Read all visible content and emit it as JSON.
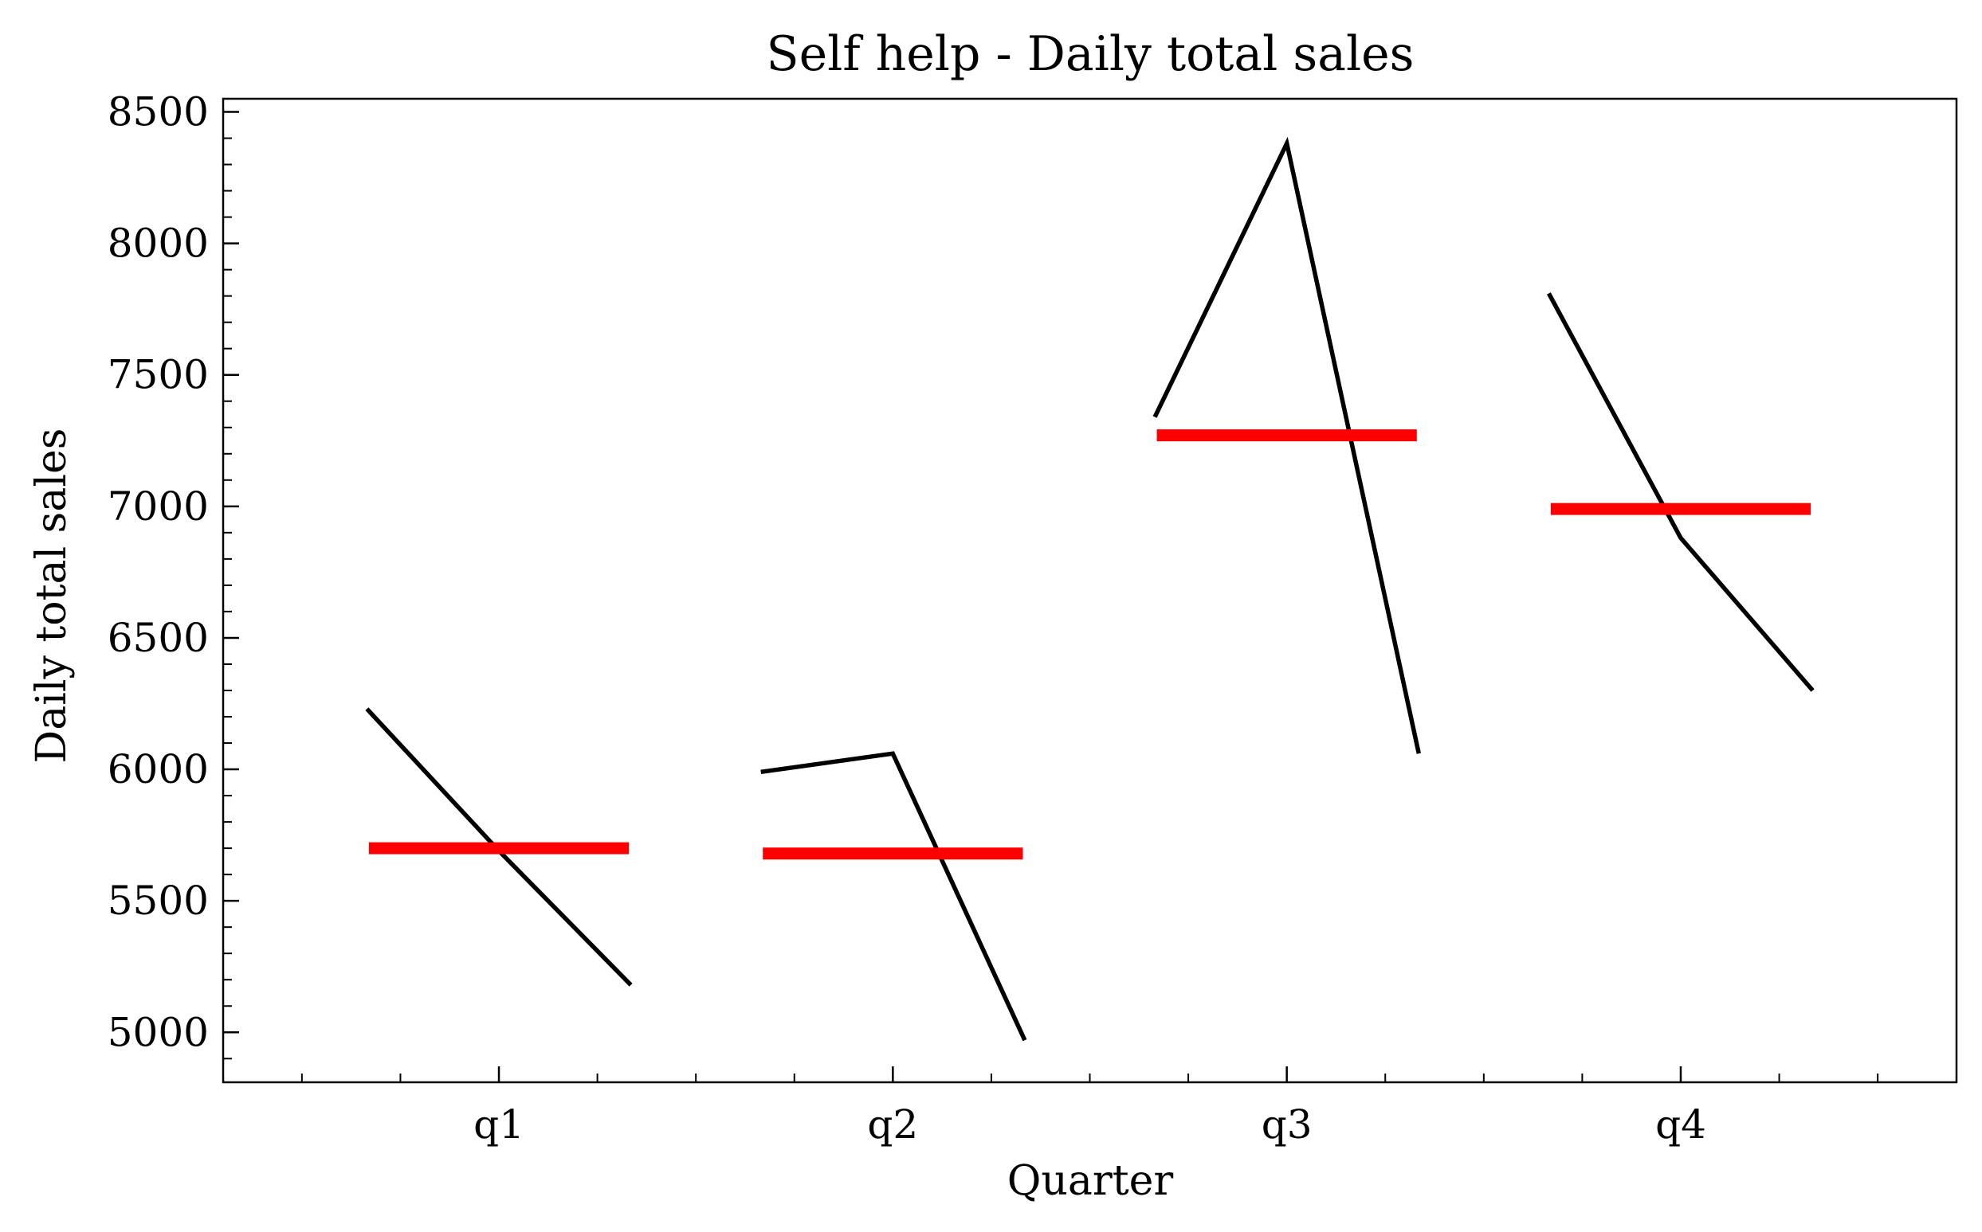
{
  "chart_data": {
    "type": "line",
    "title": "Self help - Daily total sales",
    "xlabel": "Quarter",
    "ylabel": "Daily total sales",
    "categories": [
      "q1",
      "q2",
      "q3",
      "q4"
    ],
    "ylim": [
      4810,
      8550
    ],
    "yticks": [
      5000,
      5500,
      6000,
      6500,
      7000,
      7500,
      8000,
      8500
    ],
    "yminor_step": 100,
    "grid": false,
    "legend": "none",
    "groups": [
      {
        "category": "q1",
        "mean": 5700,
        "values": [
          6230,
          5690,
          5180
        ]
      },
      {
        "category": "q2",
        "mean": 5680,
        "values": [
          5990,
          6060,
          4970
        ]
      },
      {
        "category": "q3",
        "mean": 7270,
        "values": [
          7340,
          8380,
          6060
        ]
      },
      {
        "category": "q4",
        "mean": 6990,
        "values": [
          7810,
          6880,
          6300
        ]
      }
    ],
    "colors": {
      "series": "#000000",
      "mean": "#ff0000"
    }
  }
}
